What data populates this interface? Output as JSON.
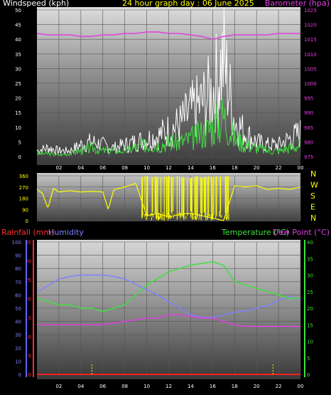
{
  "chart_data": [
    {
      "type": "line",
      "title": "24 hour graph day : 06 June 2025",
      "y_label_left": "Windspeed (kph)",
      "y_label_right": "Barometer (hpa)",
      "x_ticks": [
        "02",
        "04",
        "06",
        "08",
        "10",
        "12",
        "14",
        "16",
        "18",
        "20",
        "22",
        "00"
      ],
      "y_left_ticks": [
        "0",
        "5",
        "10",
        "15",
        "20",
        "25",
        "30",
        "35",
        "40",
        "45",
        "50"
      ],
      "y_right_ticks": [
        "975",
        "980",
        "985",
        "990",
        "995",
        "1000",
        "1005",
        "1010",
        "1015",
        "1020",
        "1025"
      ],
      "y_left_range": [
        0,
        50
      ],
      "y_right_range": [
        975,
        1025
      ],
      "colors": {
        "barometer": "#e040e0",
        "wind_avg": "#40e040",
        "wind_gust": "#ffffff",
        "title": "#ffff00"
      },
      "series": [
        {
          "key": "barometer",
          "axis": "right",
          "hours": [
            0,
            1,
            2,
            3,
            4,
            5,
            6,
            7,
            8,
            9,
            10,
            11,
            12,
            13,
            14,
            15,
            16,
            17,
            18,
            19,
            20,
            21,
            22,
            23,
            24
          ],
          "values": [
            1017,
            1016.5,
            1016.5,
            1016.5,
            1016,
            1016,
            1016.5,
            1016.5,
            1017,
            1017,
            1017.5,
            1017.5,
            1017,
            1017,
            1016.5,
            1016,
            1015,
            1016,
            1016.5,
            1016.5,
            1016.5,
            1016.5,
            1017,
            1017,
            1017
          ]
        },
        {
          "key": "wind_avg",
          "axis": "left",
          "hours": [
            0,
            1,
            2,
            3,
            4,
            5,
            6,
            7,
            8,
            9,
            10,
            11,
            12,
            13,
            14,
            15,
            16,
            17,
            18,
            19,
            20,
            21,
            22,
            23,
            24
          ],
          "values": [
            1,
            1,
            0.5,
            1,
            2,
            3,
            2,
            2,
            2,
            3,
            4,
            4,
            5,
            5,
            6,
            8,
            10,
            14,
            6,
            4,
            3,
            2,
            2,
            3,
            4
          ]
        },
        {
          "key": "wind_gust",
          "axis": "left",
          "hours": [
            0,
            1,
            2,
            3,
            4,
            5,
            6,
            7,
            8,
            9,
            10,
            11,
            12,
            13,
            14,
            15,
            16,
            17,
            18,
            19,
            20,
            21,
            22,
            23,
            24
          ],
          "values": [
            2,
            3,
            2,
            2,
            4,
            5,
            4,
            3,
            4,
            5,
            6,
            7,
            9,
            11,
            15,
            18,
            22,
            33,
            12,
            8,
            5,
            4,
            4,
            6,
            8
          ]
        }
      ]
    },
    {
      "type": "line",
      "y_ticks": [
        "0",
        "90",
        "180",
        "270",
        "360"
      ],
      "y_range": [
        0,
        360
      ],
      "compass_labels": [
        "N",
        "W",
        "S",
        "E",
        "N"
      ],
      "colors": {
        "direction": "#ffff00"
      },
      "series": [
        {
          "key": "wind_direction",
          "hours": [
            0,
            0.5,
            1,
            1.5,
            2,
            3,
            4,
            5,
            6,
            6.5,
            7,
            8,
            9,
            10,
            11,
            12,
            13,
            14,
            15,
            16,
            17,
            18,
            19,
            20,
            21,
            22,
            23,
            24
          ],
          "values": [
            250,
            220,
            100,
            260,
            230,
            240,
            230,
            235,
            230,
            90,
            250,
            270,
            300,
            40,
            60,
            30,
            50,
            60,
            40,
            20,
            0,
            280,
            270,
            280,
            250,
            260,
            250,
            270
          ]
        }
      ]
    },
    {
      "type": "line",
      "y_label_left_rain": "Rainfall (mm)",
      "y_label_left_hum": "Humidity",
      "y_label_right_temp": "Temperature (°C)",
      "y_label_right_dew": "Dew Point (°C)",
      "humidity_ticks": [
        "0",
        "10",
        "20",
        "30",
        "40",
        "50",
        "60",
        "70",
        "80",
        "90",
        "100"
      ],
      "rain_ticks": [
        "0",
        "5",
        "10",
        "15",
        "20",
        "25",
        "30",
        "35"
      ],
      "temp_ticks": [
        "0",
        "5",
        "10",
        "15",
        "20",
        "25",
        "30",
        "35",
        "40"
      ],
      "humidity_range": [
        0,
        100
      ],
      "rain_range": [
        0,
        35
      ],
      "temp_range": [
        0,
        40
      ],
      "colors": {
        "humidity": "#8080ff",
        "temperature": "#40e040",
        "dewpoint": "#e040e0",
        "rain": "#ff2020",
        "rain_marker": "#ffff00"
      },
      "series": [
        {
          "key": "humidity",
          "axis": "humidity",
          "hours": [
            0,
            1,
            2,
            3,
            4,
            5,
            6,
            7,
            8,
            9,
            10,
            11,
            12,
            13,
            14,
            15,
            16,
            17,
            18,
            19,
            20,
            21,
            22,
            23,
            24
          ],
          "values": [
            62,
            67,
            72,
            74,
            75,
            75,
            75,
            74,
            72,
            68,
            64,
            60,
            55,
            50,
            45,
            43,
            43,
            45,
            47,
            48,
            50,
            52,
            56,
            59,
            56
          ]
        },
        {
          "key": "temperature",
          "axis": "temp",
          "hours": [
            0,
            1,
            2,
            3,
            4,
            5,
            6,
            7,
            8,
            9,
            10,
            11,
            12,
            13,
            14,
            15,
            16,
            17,
            18,
            19,
            20,
            21,
            22,
            23,
            24
          ],
          "values": [
            23,
            22,
            21,
            21,
            20,
            20,
            19,
            20,
            21,
            24,
            27,
            29,
            31,
            32,
            33,
            33.5,
            34,
            33,
            28,
            27,
            26,
            25,
            24,
            23,
            23
          ]
        },
        {
          "key": "dewpoint",
          "axis": "temp",
          "hours": [
            0,
            1,
            2,
            3,
            4,
            5,
            6,
            7,
            8,
            9,
            10,
            11,
            12,
            13,
            14,
            15,
            16,
            17,
            18,
            19,
            20,
            21,
            22,
            23,
            24
          ],
          "values": [
            15,
            15,
            15,
            15,
            15,
            15,
            15,
            15.5,
            16,
            16.5,
            17,
            17,
            18,
            18,
            17.5,
            17,
            17,
            16,
            15,
            14.5,
            14.5,
            14.5,
            14.5,
            14.5,
            14.5
          ]
        }
      ],
      "rain_markers_hours": [
        5,
        21.5
      ],
      "rain_total": 0
    }
  ]
}
